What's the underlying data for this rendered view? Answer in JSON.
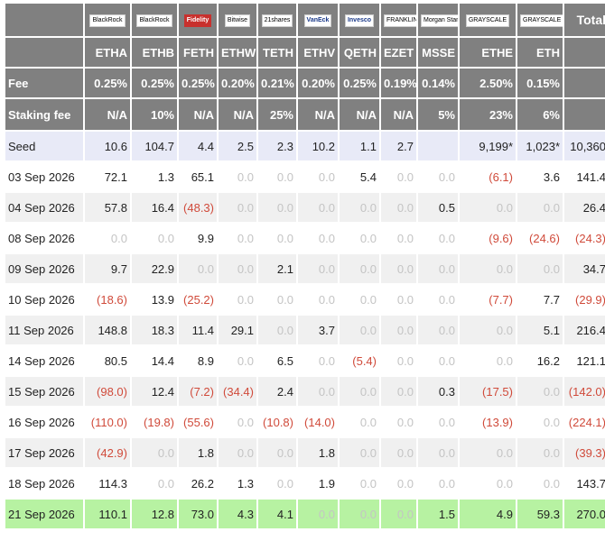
{
  "logos": [
    {
      "text": "BlackRock",
      "style": "plain"
    },
    {
      "text": "BlackRock",
      "style": "plain"
    },
    {
      "text": "Fidelity",
      "style": "red"
    },
    {
      "text": "Bitwise",
      "style": "plain"
    },
    {
      "text": "21shares",
      "style": "plain"
    },
    {
      "text": "VanEck",
      "style": "blue"
    },
    {
      "text": "Invesco",
      "style": "blue"
    },
    {
      "text": "FRANKLIN TEMPLETON",
      "style": "plain"
    },
    {
      "text": "Morgan Stanley",
      "style": "plain"
    },
    {
      "text": "GRAYSCALE",
      "style": "plain"
    },
    {
      "text": "GRAYSCALE",
      "style": "plain"
    }
  ],
  "total_label": "Total",
  "tickers": [
    "ETHA",
    "ETHB",
    "FETH",
    "ETHW",
    "TETH",
    "ETHV",
    "QETH",
    "EZET",
    "MSSE",
    "ETHE",
    "ETH"
  ],
  "fee_label": "Fee",
  "fees": [
    "0.25%",
    "0.25%",
    "0.25%",
    "0.20%",
    "0.21%",
    "0.20%",
    "0.25%",
    "0.19%",
    "0.14%",
    "2.50%",
    "0.15%"
  ],
  "staking_label": "Staking fee",
  "staking": [
    "N/A",
    "10%",
    "N/A",
    "N/A",
    "25%",
    "N/A",
    "N/A",
    "N/A",
    "5%",
    "23%",
    "6%"
  ],
  "rows": [
    {
      "label": "Seed",
      "cells": [
        "10.6",
        "104.7",
        "4.4",
        "2.5",
        "2.3",
        "10.2",
        "1.1",
        "2.7",
        "",
        "9,199*",
        "1,023*",
        "10,360"
      ]
    },
    {
      "label": "03 Sep 2026",
      "cells": [
        "72.1",
        "1.3",
        "65.1",
        "0.0",
        "0.0",
        "0.0",
        "5.4",
        "0.0",
        "0.0",
        "(6.1)",
        "3.6",
        "141.4"
      ]
    },
    {
      "label": "04 Sep 2026",
      "cells": [
        "57.8",
        "16.4",
        "(48.3)",
        "0.0",
        "0.0",
        "0.0",
        "0.0",
        "0.0",
        "0.5",
        "0.0",
        "0.0",
        "26.4"
      ]
    },
    {
      "label": "08 Sep 2026",
      "cells": [
        "0.0",
        "0.0",
        "9.9",
        "0.0",
        "0.0",
        "0.0",
        "0.0",
        "0.0",
        "0.0",
        "(9.6)",
        "(24.6)",
        "(24.3)"
      ]
    },
    {
      "label": "09 Sep 2026",
      "cells": [
        "9.7",
        "22.9",
        "0.0",
        "0.0",
        "2.1",
        "0.0",
        "0.0",
        "0.0",
        "0.0",
        "0.0",
        "0.0",
        "34.7"
      ]
    },
    {
      "label": "10 Sep 2026",
      "cells": [
        "(18.6)",
        "13.9",
        "(25.2)",
        "0.0",
        "0.0",
        "0.0",
        "0.0",
        "0.0",
        "0.0",
        "(7.7)",
        "7.7",
        "(29.9)"
      ]
    },
    {
      "label": "11 Sep 2026",
      "cells": [
        "148.8",
        "18.3",
        "11.4",
        "29.1",
        "0.0",
        "3.7",
        "0.0",
        "0.0",
        "0.0",
        "0.0",
        "5.1",
        "216.4"
      ]
    },
    {
      "label": "14 Sep 2026",
      "cells": [
        "80.5",
        "14.4",
        "8.9",
        "0.0",
        "6.5",
        "0.0",
        "(5.4)",
        "0.0",
        "0.0",
        "0.0",
        "16.2",
        "121.1"
      ]
    },
    {
      "label": "15 Sep 2026",
      "cells": [
        "(98.0)",
        "12.4",
        "(7.2)",
        "(34.4)",
        "2.4",
        "0.0",
        "0.0",
        "0.0",
        "0.3",
        "(17.5)",
        "0.0",
        "(142.0)"
      ]
    },
    {
      "label": "16 Sep 2026",
      "cells": [
        "(110.0)",
        "(19.8)",
        "(55.6)",
        "0.0",
        "(10.8)",
        "(14.0)",
        "0.0",
        "0.0",
        "0.0",
        "(13.9)",
        "0.0",
        "(224.1)"
      ]
    },
    {
      "label": "17 Sep 2026",
      "cells": [
        "(42.9)",
        "0.0",
        "1.8",
        "0.0",
        "0.0",
        "1.8",
        "0.0",
        "0.0",
        "0.0",
        "0.0",
        "0.0",
        "(39.3)"
      ]
    },
    {
      "label": "18 Sep 2026",
      "cells": [
        "114.3",
        "0.0",
        "26.2",
        "1.3",
        "0.0",
        "1.9",
        "0.0",
        "0.0",
        "0.0",
        "0.0",
        "0.0",
        "143.7"
      ]
    },
    {
      "label": "21 Sep 2026",
      "cells": [
        "110.1",
        "12.8",
        "73.0",
        "4.3",
        "4.1",
        "0.0",
        "0.0",
        "0.0",
        "1.5",
        "4.9",
        "59.3",
        "270.0"
      ]
    }
  ]
}
